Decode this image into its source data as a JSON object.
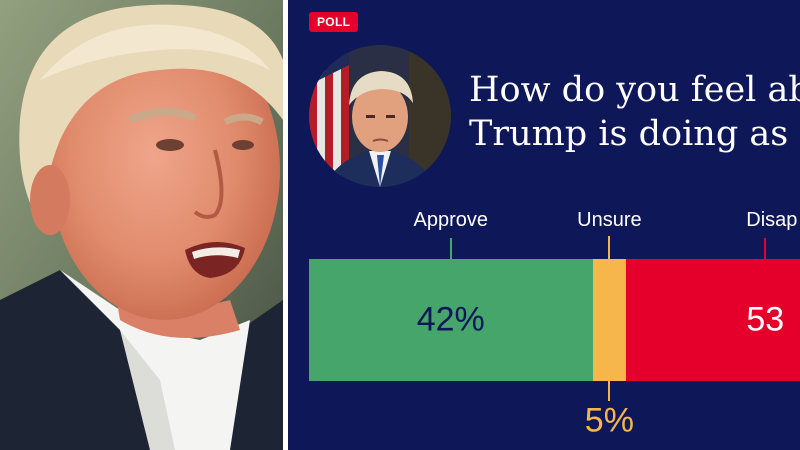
{
  "poll": {
    "badge": "POLL",
    "question_line1": "How do you feel abo",
    "question_line2": "Trump is doing as pr"
  },
  "chart_data": {
    "type": "bar",
    "orientation": "horizontal-stacked",
    "categories": [
      "Approve",
      "Unsure",
      "Disap"
    ],
    "values": [
      42,
      5,
      53
    ],
    "value_labels": [
      "42%",
      "5%",
      "53"
    ],
    "colors": [
      "#45a56b",
      "#f6b64c",
      "#e4002b"
    ],
    "label_colors": [
      "#0e1758",
      "#f6b64c",
      "#ffffff"
    ],
    "xlim": [
      0,
      100
    ],
    "title": "",
    "xlabel": "",
    "ylabel": ""
  },
  "colors": {
    "panel_bg": "#0e1758",
    "badge_bg": "#e4002b"
  }
}
